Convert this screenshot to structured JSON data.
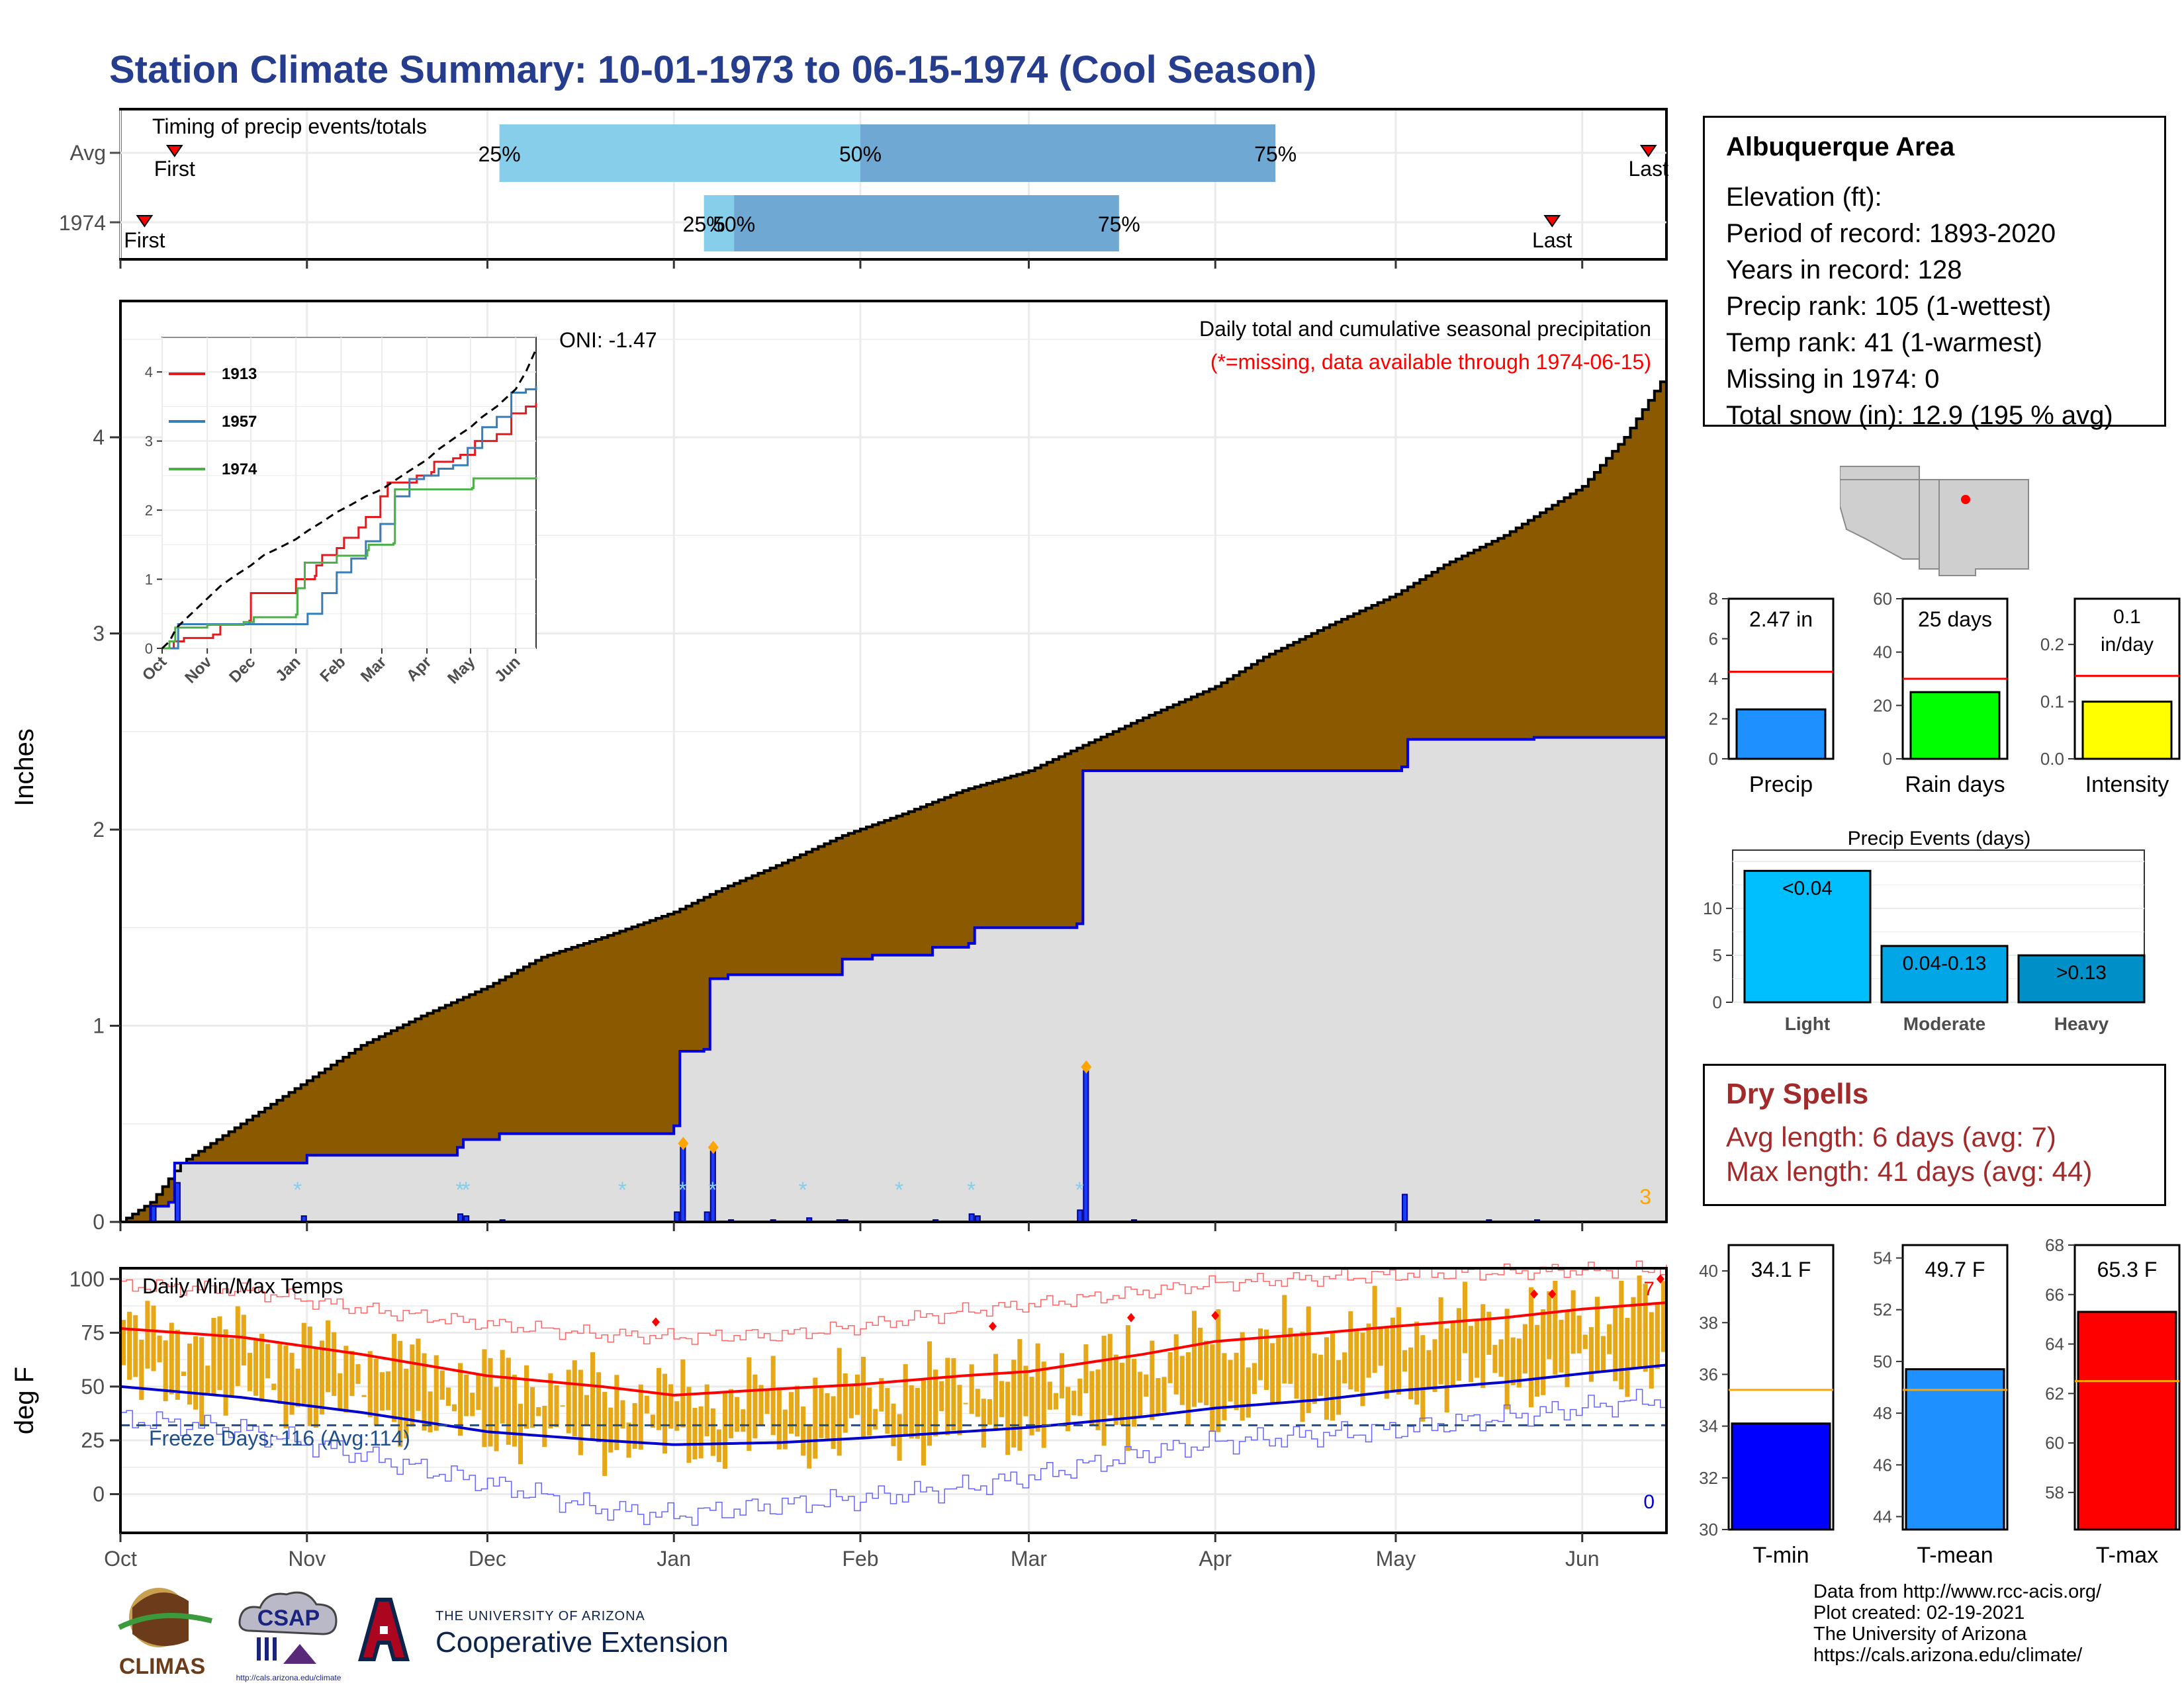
{
  "title": "Station Climate Summary: 10-01-1973 to 06-15-1974 (Cool Season)",
  "colors": {
    "title": "#253d8c",
    "precip_fill": "#8b5a00",
    "observed_fill": "#dedede",
    "observed_line": "#0000dd",
    "daily_bar": "#1a3cff",
    "temp_bar": "#e6a817",
    "tmax_line": "#ff0000",
    "tmin_line": "#0000cc",
    "freeze_line": "#1f4e8c",
    "dry_text": "#a32a2a",
    "light_events": "#00bfff",
    "moderate_events": "#00a6e6",
    "heavy_events": "#0090c8"
  },
  "timing": {
    "label": "Timing of precip events/totals",
    "rows": [
      {
        "label": "Avg",
        "first": "First",
        "last": "Last",
        "q25": "25%",
        "q50": "50%",
        "q75": "75%"
      },
      {
        "label": "1974",
        "first": "First",
        "last": "Last",
        "q25": "25%",
        "q50": "50%",
        "q75": "75%"
      }
    ]
  },
  "precip_panel": {
    "ylabel": "Inches",
    "yticks": [
      "0",
      "1",
      "2",
      "3",
      "4"
    ],
    "oni": "ONI: -1.47",
    "heading": "Daily total and cumulative seasonal precipitation",
    "note": "(*=missing, data available through 1974-06-15)",
    "max_daily_count": "3"
  },
  "inset": {
    "legend": [
      "1913",
      "1957",
      "1974"
    ],
    "yticks": [
      "0",
      "1",
      "2",
      "3",
      "4"
    ],
    "xticks": [
      "Oct",
      "Nov",
      "Dec",
      "Jan",
      "Feb",
      "Mar",
      "Apr",
      "May",
      "Jun"
    ]
  },
  "temp_panel": {
    "ylabel": "deg F",
    "label": "Daily Min/Max Temps",
    "freeze": "Freeze Days: 116 (Avg:114)",
    "yticks": [
      "100",
      "75",
      "50",
      "25",
      "0"
    ],
    "count_high": "7",
    "count_low": "0"
  },
  "x_months": [
    "Oct",
    "Nov",
    "Dec",
    "Jan",
    "Feb",
    "Mar",
    "Apr",
    "May",
    "Jun"
  ],
  "info": {
    "station": "Albuquerque Area",
    "lines": [
      "Elevation (ft):",
      "Period of record: 1893-2020",
      "Years in record: 128",
      "Precip rank: 105 (1-wettest)",
      "Temp rank: 41 (1-warmest)",
      "Missing in 1974: 0",
      "Total snow (in): 12.9 (195 % avg)"
    ]
  },
  "mini_bars": [
    {
      "label": "Precip",
      "value_label": "2.47 in",
      "value": 2.47,
      "avg": 4.35,
      "ymax": 8,
      "ticks": [
        "8",
        "6",
        "4",
        "2",
        "0"
      ],
      "color": "#1e90ff"
    },
    {
      "label": "Rain days",
      "value_label": "25 days",
      "value": 25,
      "avg": 30,
      "ymax": 60,
      "ticks": [
        "60",
        "40",
        "20",
        "0"
      ],
      "color": "#00ff00"
    },
    {
      "label": "Intensity",
      "value_label": "0.1 in/day",
      "value_label_1": "0.1",
      "value_label_2": "in/day",
      "value": 0.1,
      "avg": 0.145,
      "ymax": 0.28,
      "ticks": [
        "0.2",
        "0.1",
        "0.0"
      ],
      "color": "#ffff00"
    }
  ],
  "events": {
    "title": "Precip Events (days)",
    "yticks": [
      "10",
      "5",
      "0"
    ],
    "bars": [
      {
        "label": "Light",
        "inner": "<0.04",
        "value": 14
      },
      {
        "label": "Moderate",
        "inner": "0.04-0.13",
        "value": 6
      },
      {
        "label": "Heavy",
        "inner": ">0.13",
        "value": 5
      }
    ]
  },
  "dry_spells": {
    "title": "Dry Spells",
    "avg": "Avg length: 6 days (avg: 7)",
    "max": "Max length: 41 days (avg: 44)"
  },
  "temp_bars": [
    {
      "label": "T-min",
      "value_label": "34.1 F",
      "value": 34.1,
      "avg": 35.4,
      "ymin": 30,
      "ymax": 41,
      "ticks": [
        "40",
        "38",
        "36",
        "34",
        "32",
        "30"
      ],
      "color": "#0000ff"
    },
    {
      "label": "T-mean",
      "value_label": "49.7 F",
      "value": 49.7,
      "avg": 48.9,
      "ymin": 43.5,
      "ymax": 54.5,
      "ticks": [
        "54",
        "52",
        "50",
        "48",
        "46",
        "44"
      ],
      "color": "#1e90ff"
    },
    {
      "label": "T-max",
      "value_label": "65.3 F",
      "value": 65.3,
      "avg": 62.5,
      "ymin": 56.5,
      "ymax": 68,
      "ticks": [
        "68",
        "66",
        "64",
        "62",
        "60",
        "58"
      ],
      "color": "#ff0000"
    }
  ],
  "credits": [
    "Data from http://www.rcc-acis.org/",
    "Plot created: 02-19-2021",
    "The University of Arizona",
    "https://cals.arizona.edu/climate/"
  ],
  "logos": {
    "climas": "CLIMAS",
    "csap": "CSAP",
    "csap_url": "http://cals.arizona.edu/climate",
    "ua_line1": "THE UNIVERSITY OF ARIZONA",
    "ua_line2": "Cooperative Extension"
  },
  "chart_data": {
    "type": "area",
    "season_start": "1973-10-01",
    "season_end": "1974-06-15",
    "xlim_days": [
      0,
      257
    ],
    "month_days": [
      0,
      31,
      61,
      92,
      123,
      151,
      182,
      212,
      243
    ],
    "avg_cumulative": [
      [
        0,
        0
      ],
      [
        5,
        0.1
      ],
      [
        10,
        0.3
      ],
      [
        20,
        0.5
      ],
      [
        30,
        0.7
      ],
      [
        40,
        0.9
      ],
      [
        50,
        1.05
      ],
      [
        61,
        1.2
      ],
      [
        70,
        1.35
      ],
      [
        80,
        1.45
      ],
      [
        92,
        1.58
      ],
      [
        100,
        1.7
      ],
      [
        110,
        1.83
      ],
      [
        120,
        1.97
      ],
      [
        130,
        2.08
      ],
      [
        140,
        2.2
      ],
      [
        151,
        2.3
      ],
      [
        160,
        2.43
      ],
      [
        170,
        2.57
      ],
      [
        182,
        2.73
      ],
      [
        190,
        2.88
      ],
      [
        200,
        3.03
      ],
      [
        212,
        3.2
      ],
      [
        220,
        3.35
      ],
      [
        230,
        3.5
      ],
      [
        243,
        3.75
      ],
      [
        250,
        4.0
      ],
      [
        257,
        4.33
      ]
    ],
    "obs_cumulative": [
      [
        0,
        0
      ],
      [
        5,
        0.08
      ],
      [
        8,
        0.1
      ],
      [
        9,
        0.3
      ],
      [
        31,
        0.34
      ],
      [
        56,
        0.38
      ],
      [
        57,
        0.42
      ],
      [
        63,
        0.45
      ],
      [
        92,
        0.49
      ],
      [
        93,
        0.87
      ],
      [
        97,
        0.88
      ],
      [
        98,
        1.24
      ],
      [
        101,
        1.26
      ],
      [
        120,
        1.34
      ],
      [
        125,
        1.36
      ],
      [
        135,
        1.4
      ],
      [
        141,
        1.42
      ],
      [
        142,
        1.5
      ],
      [
        159,
        1.52
      ],
      [
        160,
        2.3
      ],
      [
        175,
        2.3
      ],
      [
        213,
        2.32
      ],
      [
        214,
        2.46
      ],
      [
        235,
        2.47
      ],
      [
        257,
        2.48
      ]
    ],
    "daily_precip": [
      [
        5,
        0.08
      ],
      [
        9,
        0.2
      ],
      [
        30,
        0.03
      ],
      [
        56,
        0.04
      ],
      [
        57,
        0.03
      ],
      [
        63,
        0.01
      ],
      [
        92,
        0.05
      ],
      [
        93,
        0.38
      ],
      [
        97,
        0.05
      ],
      [
        98,
        0.36
      ],
      [
        101,
        0.01
      ],
      [
        108,
        0.01
      ],
      [
        114,
        0.02
      ],
      [
        119,
        0.01
      ],
      [
        120,
        0.01
      ],
      [
        135,
        0.01
      ],
      [
        141,
        0.04
      ],
      [
        142,
        0.03
      ],
      [
        159,
        0.06
      ],
      [
        160,
        0.77
      ],
      [
        168,
        0.01
      ],
      [
        213,
        0.14
      ],
      [
        227,
        0.01
      ],
      [
        235,
        0.01
      ]
    ],
    "missing_marks": [
      29,
      56,
      57,
      83,
      93,
      98,
      113,
      129,
      141,
      159
    ],
    "inset": {
      "ylim": [
        0,
        4.5
      ],
      "series": [
        {
          "name": "1913",
          "color": "#e41a1c",
          "points": [
            [
              0,
              0
            ],
            [
              8,
              0.1
            ],
            [
              15,
              0.15
            ],
            [
              35,
              0.2
            ],
            [
              40,
              0.35
            ],
            [
              60,
              0.4
            ],
            [
              61,
              0.8
            ],
            [
              90,
              0.8
            ],
            [
              92,
              1.0
            ],
            [
              105,
              1.05
            ],
            [
              106,
              1.2
            ],
            [
              110,
              1.35
            ],
            [
              120,
              1.45
            ],
            [
              125,
              1.6
            ],
            [
              135,
              1.75
            ],
            [
              140,
              1.9
            ],
            [
              150,
              2.2
            ],
            [
              155,
              2.4
            ],
            [
              175,
              2.5
            ],
            [
              185,
              2.55
            ],
            [
              187,
              2.7
            ],
            [
              200,
              2.75
            ],
            [
              205,
              2.8
            ],
            [
              215,
              3.0
            ],
            [
              230,
              3.1
            ],
            [
              240,
              3.4
            ],
            [
              250,
              3.5
            ],
            [
              257,
              3.55
            ]
          ]
        },
        {
          "name": "1957",
          "color": "#377eb8",
          "points": [
            [
              0,
              0
            ],
            [
              10,
              0
            ],
            [
              11,
              0.35
            ],
            [
              40,
              0.35
            ],
            [
              92,
              0.35
            ],
            [
              100,
              0.5
            ],
            [
              110,
              0.8
            ],
            [
              120,
              1.1
            ],
            [
              130,
              1.3
            ],
            [
              140,
              1.55
            ],
            [
              150,
              1.8
            ],
            [
              160,
              2.2
            ],
            [
              170,
              2.45
            ],
            [
              180,
              2.5
            ],
            [
              190,
              2.6
            ],
            [
              200,
              2.65
            ],
            [
              210,
              2.9
            ],
            [
              220,
              3.2
            ],
            [
              230,
              3.35
            ],
            [
              240,
              3.7
            ],
            [
              250,
              3.75
            ],
            [
              257,
              3.8
            ]
          ]
        },
        {
          "name": "1974",
          "color": "#4daf4a",
          "points": [
            [
              0,
              0
            ],
            [
              5,
              0.1
            ],
            [
              9,
              0.3
            ],
            [
              31,
              0.34
            ],
            [
              56,
              0.38
            ],
            [
              63,
              0.45
            ],
            [
              92,
              0.49
            ],
            [
              93,
              0.87
            ],
            [
              98,
              1.24
            ],
            [
              120,
              1.34
            ],
            [
              141,
              1.42
            ],
            [
              142,
              1.5
            ],
            [
              159,
              1.52
            ],
            [
              160,
              2.3
            ],
            [
              213,
              2.32
            ],
            [
              214,
              2.46
            ],
            [
              257,
              2.48
            ]
          ]
        },
        {
          "name": "",
          "color": "#000000",
          "dash": true,
          "points": [
            [
              0,
              0
            ],
            [
              5,
              0.1
            ],
            [
              10,
              0.3
            ],
            [
              20,
              0.5
            ],
            [
              30,
              0.7
            ],
            [
              40,
              0.9
            ],
            [
              50,
              1.05
            ],
            [
              61,
              1.2
            ],
            [
              70,
              1.35
            ],
            [
              80,
              1.45
            ],
            [
              92,
              1.58
            ],
            [
              100,
              1.7
            ],
            [
              110,
              1.83
            ],
            [
              120,
              1.97
            ],
            [
              130,
              2.08
            ],
            [
              140,
              2.2
            ],
            [
              151,
              2.3
            ],
            [
              160,
              2.43
            ],
            [
              170,
              2.57
            ],
            [
              182,
              2.73
            ],
            [
              190,
              2.88
            ],
            [
              200,
              3.03
            ],
            [
              212,
              3.2
            ],
            [
              220,
              3.35
            ],
            [
              230,
              3.5
            ],
            [
              243,
              3.75
            ],
            [
              250,
              4.0
            ],
            [
              257,
              4.33
            ]
          ]
        }
      ]
    },
    "temps": {
      "ylim": [
        -18,
        105
      ],
      "avg_max": [
        [
          0,
          77
        ],
        [
          20,
          73
        ],
        [
          40,
          65
        ],
        [
          61,
          55
        ],
        [
          80,
          50
        ],
        [
          92,
          46
        ],
        [
          110,
          49
        ],
        [
          123,
          51
        ],
        [
          140,
          55
        ],
        [
          151,
          57
        ],
        [
          170,
          65
        ],
        [
          182,
          71
        ],
        [
          200,
          75
        ],
        [
          212,
          78
        ],
        [
          230,
          82
        ],
        [
          243,
          86
        ],
        [
          257,
          89
        ]
      ],
      "avg_min": [
        [
          0,
          50
        ],
        [
          20,
          45
        ],
        [
          40,
          38
        ],
        [
          61,
          29
        ],
        [
          80,
          25
        ],
        [
          92,
          23
        ],
        [
          110,
          24
        ],
        [
          123,
          26
        ],
        [
          140,
          29
        ],
        [
          151,
          31
        ],
        [
          170,
          36
        ],
        [
          182,
          40
        ],
        [
          200,
          44
        ],
        [
          212,
          48
        ],
        [
          230,
          52
        ],
        [
          243,
          56
        ],
        [
          257,
          60
        ]
      ],
      "record_max": [
        [
          0,
          97
        ],
        [
          20,
          95
        ],
        [
          40,
          86
        ],
        [
          61,
          79
        ],
        [
          80,
          74
        ],
        [
          92,
          73
        ],
        [
          110,
          74
        ],
        [
          123,
          78
        ],
        [
          140,
          85
        ],
        [
          151,
          88
        ],
        [
          170,
          94
        ],
        [
          182,
          98
        ],
        [
          212,
          102
        ],
        [
          243,
          104
        ],
        [
          257,
          105
        ]
      ],
      "record_min": [
        [
          0,
          35
        ],
        [
          20,
          30
        ],
        [
          40,
          18
        ],
        [
          61,
          5
        ],
        [
          80,
          -7
        ],
        [
          92,
          -10
        ],
        [
          110,
          -5
        ],
        [
          123,
          -2
        ],
        [
          140,
          3
        ],
        [
          151,
          8
        ],
        [
          170,
          19
        ],
        [
          182,
          24
        ],
        [
          212,
          30
        ],
        [
          243,
          40
        ],
        [
          257,
          45
        ]
      ],
      "freeze_level": 32,
      "record_high_marks": [
        [
          89,
          80
        ],
        [
          145,
          78
        ],
        [
          168,
          82
        ],
        [
          182,
          83
        ],
        [
          235,
          93
        ],
        [
          238,
          93
        ],
        [
          256,
          100
        ]
      ]
    },
    "timing_days": {
      "avg": {
        "first": 9,
        "last": 254,
        "q25": 63,
        "q50": 123,
        "q75": 192
      },
      "obs": {
        "first": 4,
        "last": 238,
        "q25": 97,
        "q50": 102,
        "q75": 166
      }
    }
  }
}
